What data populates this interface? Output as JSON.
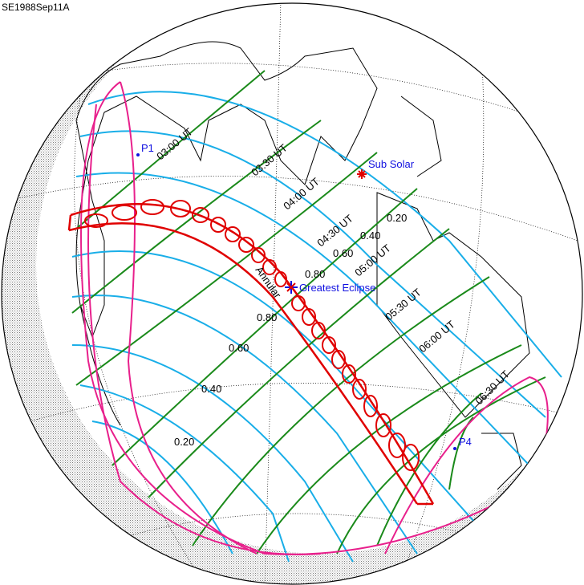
{
  "title": "SE1988Sep11A",
  "colors": {
    "magnitude": "#19aee8",
    "time": "#1a8a1a",
    "central_path": "#e00000",
    "limits": "#e8208c",
    "markers": "#1010e0"
  },
  "time_labels": [
    "03:00 UT",
    "03:30 UT",
    "04:00 UT",
    "04:30 UT",
    "05:00 UT",
    "05:30 UT",
    "06:00 UT",
    "06:30 UT"
  ],
  "magnitude_labels": [
    "0.20",
    "0.40",
    "0.60",
    "0.80",
    "0.80",
    "0.60",
    "0.40",
    "0.20"
  ],
  "points": {
    "p1": "P1",
    "p4": "P4",
    "sub_solar": "Sub Solar",
    "greatest": "Greatest Eclipse"
  },
  "path_type": "Annular"
}
